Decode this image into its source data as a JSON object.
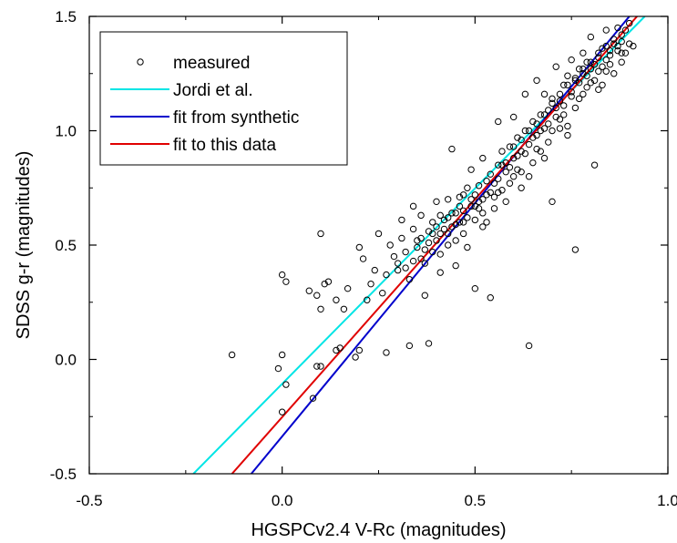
{
  "chart_data": {
    "type": "scatter",
    "title": "",
    "xlabel": "HGSPCv2.4 V-Rc (magnitudes)",
    "ylabel": "SDSS g-r (magnitudes)",
    "xlim": [
      -0.5,
      1.0
    ],
    "ylim": [
      -0.5,
      1.5
    ],
    "xticks": [
      -0.5,
      0.0,
      0.5,
      1.0
    ],
    "xtick_labels": [
      "-0.5",
      "0.0",
      "0.5",
      "1.0"
    ],
    "yticks": [
      -0.5,
      0.0,
      0.5,
      1.0,
      1.5
    ],
    "ytick_labels": [
      "-0.5",
      "0.0",
      "0.5",
      "1.0",
      "1.5"
    ],
    "grid": false,
    "legend_position": "top-left",
    "series": [
      {
        "name": "measured",
        "kind": "scatter",
        "marker": "open-circle",
        "color": "#000000",
        "points": [
          [
            -0.13,
            0.02
          ],
          [
            -0.01,
            -0.04
          ],
          [
            0.0,
            0.37
          ],
          [
            0.01,
            0.34
          ],
          [
            0.0,
            0.02
          ],
          [
            0.01,
            -0.11
          ],
          [
            0.0,
            -0.23
          ],
          [
            0.07,
            0.3
          ],
          [
            0.09,
            -0.03
          ],
          [
            0.1,
            -0.03
          ],
          [
            0.09,
            0.28
          ],
          [
            0.1,
            0.22
          ],
          [
            0.1,
            0.55
          ],
          [
            0.11,
            0.33
          ],
          [
            0.12,
            0.34
          ],
          [
            0.08,
            -0.17
          ],
          [
            0.14,
            0.04
          ],
          [
            0.15,
            0.05
          ],
          [
            0.14,
            0.26
          ],
          [
            0.16,
            0.22
          ],
          [
            0.17,
            0.31
          ],
          [
            0.2,
            0.49
          ],
          [
            0.19,
            0.01
          ],
          [
            0.2,
            0.04
          ],
          [
            0.21,
            0.44
          ],
          [
            0.22,
            0.26
          ],
          [
            0.23,
            0.33
          ],
          [
            0.24,
            0.39
          ],
          [
            0.25,
            0.55
          ],
          [
            0.26,
            0.29
          ],
          [
            0.27,
            0.37
          ],
          [
            0.28,
            0.5
          ],
          [
            0.27,
            0.03
          ],
          [
            0.29,
            0.45
          ],
          [
            0.3,
            0.39
          ],
          [
            0.31,
            0.53
          ],
          [
            0.31,
            0.61
          ],
          [
            0.32,
            0.47
          ],
          [
            0.33,
            0.35
          ],
          [
            0.33,
            0.06
          ],
          [
            0.34,
            0.57
          ],
          [
            0.34,
            0.67
          ],
          [
            0.35,
            0.52
          ],
          [
            0.36,
            0.44
          ],
          [
            0.36,
            0.63
          ],
          [
            0.37,
            0.48
          ],
          [
            0.37,
            0.28
          ],
          [
            0.38,
            0.56
          ],
          [
            0.38,
            0.07
          ],
          [
            0.39,
            0.6
          ],
          [
            0.4,
            0.52
          ],
          [
            0.4,
            0.69
          ],
          [
            0.41,
            0.63
          ],
          [
            0.41,
            0.38
          ],
          [
            0.42,
            0.57
          ],
          [
            0.43,
            0.7
          ],
          [
            0.43,
            0.5
          ],
          [
            0.44,
            0.64
          ],
          [
            0.44,
            0.92
          ],
          [
            0.45,
            0.59
          ],
          [
            0.45,
            0.41
          ],
          [
            0.46,
            0.71
          ],
          [
            0.47,
            0.65
          ],
          [
            0.47,
            0.55
          ],
          [
            0.48,
            0.75
          ],
          [
            0.48,
            0.49
          ],
          [
            0.49,
            0.67
          ],
          [
            0.49,
            0.83
          ],
          [
            0.5,
            0.61
          ],
          [
            0.5,
            0.31
          ],
          [
            0.51,
            0.76
          ],
          [
            0.51,
            0.69
          ],
          [
            0.52,
            0.58
          ],
          [
            0.52,
            0.88
          ],
          [
            0.53,
            0.72
          ],
          [
            0.53,
            0.6
          ],
          [
            0.54,
            0.81
          ],
          [
            0.54,
            0.27
          ],
          [
            0.55,
            0.77
          ],
          [
            0.55,
            0.66
          ],
          [
            0.56,
            0.85
          ],
          [
            0.56,
            1.04
          ],
          [
            0.57,
            0.74
          ],
          [
            0.57,
            0.91
          ],
          [
            0.58,
            0.82
          ],
          [
            0.58,
            0.69
          ],
          [
            0.59,
            0.93
          ],
          [
            0.59,
            0.77
          ],
          [
            0.6,
            0.88
          ],
          [
            0.6,
            1.06
          ],
          [
            0.61,
            0.83
          ],
          [
            0.61,
            0.97
          ],
          [
            0.62,
            0.91
          ],
          [
            0.62,
            0.75
          ],
          [
            0.63,
            1.0
          ],
          [
            0.63,
            1.16
          ],
          [
            0.64,
            0.94
          ],
          [
            0.64,
            0.06
          ],
          [
            0.65,
            1.04
          ],
          [
            0.65,
            0.86
          ],
          [
            0.66,
            0.98
          ],
          [
            0.66,
            1.22
          ],
          [
            0.67,
            1.07
          ],
          [
            0.67,
            0.91
          ],
          [
            0.68,
            1.01
          ],
          [
            0.68,
            1.16
          ],
          [
            0.69,
            1.09
          ],
          [
            0.69,
            0.95
          ],
          [
            0.7,
            1.14
          ],
          [
            0.7,
            0.69
          ],
          [
            0.71,
            1.06
          ],
          [
            0.71,
            1.28
          ],
          [
            0.72,
            1.16
          ],
          [
            0.72,
            1.01
          ],
          [
            0.73,
            1.2
          ],
          [
            0.73,
            1.07
          ],
          [
            0.74,
            1.24
          ],
          [
            0.74,
            0.98
          ],
          [
            0.75,
            1.17
          ],
          [
            0.75,
            1.31
          ],
          [
            0.76,
            1.22
          ],
          [
            0.76,
            0.48
          ],
          [
            0.77,
            1.27
          ],
          [
            0.77,
            1.14
          ],
          [
            0.78,
            1.25
          ],
          [
            0.78,
            1.34
          ],
          [
            0.79,
            1.19
          ],
          [
            0.79,
            1.3
          ],
          [
            0.8,
            1.27
          ],
          [
            0.8,
            1.41
          ],
          [
            0.81,
            1.22
          ],
          [
            0.81,
            0.85
          ],
          [
            0.82,
            1.32
          ],
          [
            0.82,
            1.26
          ],
          [
            0.83,
            1.36
          ],
          [
            0.83,
            1.2
          ],
          [
            0.84,
            1.31
          ],
          [
            0.84,
            1.44
          ],
          [
            0.85,
            1.29
          ],
          [
            0.85,
            1.35
          ],
          [
            0.86,
            1.4
          ],
          [
            0.86,
            1.25
          ],
          [
            0.87,
            1.35
          ],
          [
            0.87,
            1.45
          ],
          [
            0.88,
            1.3
          ],
          [
            0.88,
            1.39
          ],
          [
            0.89,
            1.44
          ],
          [
            0.89,
            1.34
          ],
          [
            0.9,
            1.47
          ],
          [
            0.9,
            1.38
          ],
          [
            0.91,
            1.37
          ],
          [
            0.45,
            0.64
          ],
          [
            0.46,
            0.6
          ],
          [
            0.47,
            0.72
          ],
          [
            0.5,
            0.67
          ],
          [
            0.52,
            0.7
          ],
          [
            0.54,
            0.73
          ],
          [
            0.56,
            0.79
          ],
          [
            0.58,
            0.86
          ],
          [
            0.6,
            0.8
          ],
          [
            0.62,
            0.96
          ],
          [
            0.64,
            1.0
          ],
          [
            0.66,
            1.03
          ],
          [
            0.68,
            1.07
          ],
          [
            0.7,
            1.12
          ],
          [
            0.72,
            1.13
          ],
          [
            0.74,
            1.2
          ],
          [
            0.76,
            1.23
          ],
          [
            0.78,
            1.27
          ],
          [
            0.8,
            1.3
          ],
          [
            0.82,
            1.34
          ],
          [
            0.84,
            1.37
          ],
          [
            0.86,
            1.38
          ],
          [
            0.88,
            1.42
          ],
          [
            0.35,
            0.49
          ],
          [
            0.36,
            0.53
          ],
          [
            0.38,
            0.51
          ],
          [
            0.39,
            0.55
          ],
          [
            0.4,
            0.58
          ],
          [
            0.41,
            0.55
          ],
          [
            0.42,
            0.61
          ],
          [
            0.43,
            0.62
          ],
          [
            0.44,
            0.58
          ],
          [
            0.45,
            0.52
          ],
          [
            0.46,
            0.67
          ],
          [
            0.48,
            0.62
          ],
          [
            0.49,
            0.7
          ],
          [
            0.5,
            0.72
          ],
          [
            0.51,
            0.66
          ],
          [
            0.53,
            0.78
          ],
          [
            0.55,
            0.71
          ],
          [
            0.57,
            0.85
          ],
          [
            0.59,
            0.84
          ],
          [
            0.61,
            0.89
          ],
          [
            0.63,
            0.9
          ],
          [
            0.65,
            0.97
          ],
          [
            0.67,
            1.0
          ],
          [
            0.69,
            1.03
          ],
          [
            0.71,
            1.1
          ],
          [
            0.73,
            1.11
          ],
          [
            0.75,
            1.15
          ],
          [
            0.77,
            1.21
          ],
          [
            0.79,
            1.24
          ],
          [
            0.81,
            1.29
          ],
          [
            0.83,
            1.28
          ],
          [
            0.85,
            1.33
          ],
          [
            0.87,
            1.37
          ],
          [
            0.3,
            0.42
          ],
          [
            0.32,
            0.4
          ],
          [
            0.34,
            0.43
          ],
          [
            0.37,
            0.42
          ],
          [
            0.39,
            0.47
          ],
          [
            0.41,
            0.46
          ],
          [
            0.43,
            0.55
          ],
          [
            0.47,
            0.6
          ],
          [
            0.52,
            0.64
          ],
          [
            0.56,
            0.73
          ],
          [
            0.6,
            0.93
          ],
          [
            0.62,
            0.82
          ],
          [
            0.66,
            0.92
          ],
          [
            0.7,
            1.0
          ],
          [
            0.72,
            1.05
          ],
          [
            0.76,
            1.1
          ],
          [
            0.78,
            1.16
          ],
          [
            0.8,
            1.21
          ],
          [
            0.84,
            1.26
          ],
          [
            0.88,
            1.34
          ],
          [
            0.64,
            0.8
          ],
          [
            0.68,
            0.88
          ],
          [
            0.74,
            1.02
          ],
          [
            0.82,
            1.18
          ]
        ]
      },
      {
        "name": "Jordi et al.",
        "kind": "line",
        "color": "#00e5e5",
        "points": [
          [
            -0.23,
            -0.5
          ],
          [
            0.94,
            1.5
          ]
        ]
      },
      {
        "name": "fit from synthetic",
        "kind": "line",
        "color": "#0000cc",
        "points": [
          [
            -0.08,
            -0.5
          ],
          [
            0.9,
            1.5
          ]
        ]
      },
      {
        "name": "fit to this data",
        "kind": "line",
        "color": "#e00000",
        "points": [
          [
            -0.13,
            -0.5
          ],
          [
            0.92,
            1.5
          ]
        ]
      }
    ]
  }
}
